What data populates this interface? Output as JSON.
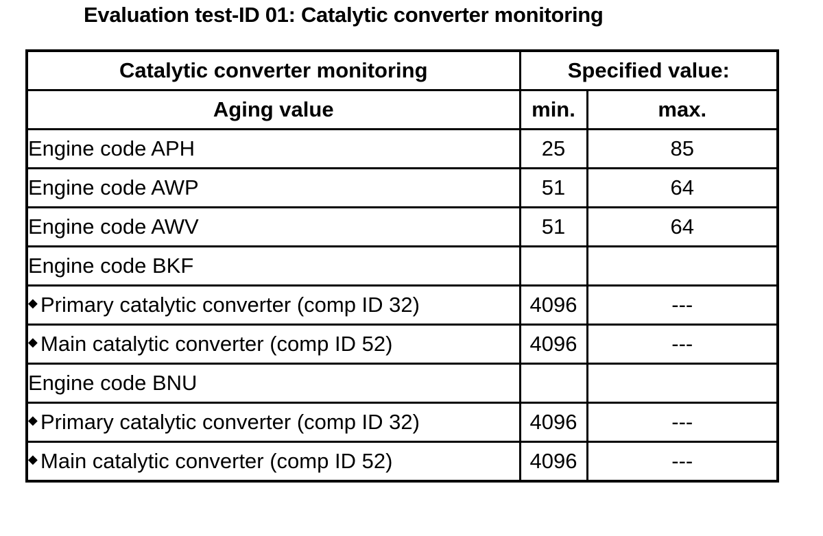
{
  "title": "Evaluation test-ID 01: Catalytic converter monitoring",
  "table": {
    "header1": {
      "label": "Catalytic converter monitoring",
      "specified": "Specified value:"
    },
    "header2": {
      "label": "Aging value",
      "min": "min.",
      "max": "max."
    },
    "rows": [
      {
        "label": "Engine code APH",
        "min": "25",
        "max": "85"
      },
      {
        "label": "Engine code AWP",
        "min": "51",
        "max": "64"
      },
      {
        "label": "Engine code AWV",
        "min": "51",
        "max": "64"
      },
      {
        "label": "Engine code BKF",
        "min": "",
        "max": ""
      },
      {
        "label": "Primary catalytic converter (comp ID 32)",
        "min": "4096",
        "max": "---"
      },
      {
        "label": "Main catalytic converter (comp ID 52)",
        "min": "4096",
        "max": "---"
      },
      {
        "label": "Engine code BNU",
        "min": "",
        "max": ""
      },
      {
        "label": "Primary catalytic converter (comp ID 32)",
        "min": "4096",
        "max": "---"
      },
      {
        "label": "Main catalytic converter (comp ID 52)",
        "min": "4096",
        "max": "---"
      }
    ],
    "bullet": "◆"
  }
}
